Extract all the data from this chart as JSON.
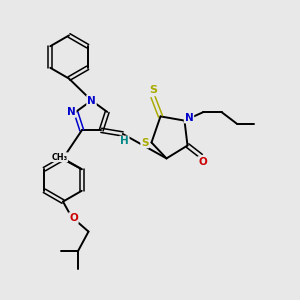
{
  "bg_color": "#e8e8e8",
  "atom_colors": {
    "C": "#000000",
    "N": "#0000cc",
    "O": "#cc0000",
    "S": "#aaaa00",
    "H": "#008888"
  },
  "bond_color": "#000000"
}
